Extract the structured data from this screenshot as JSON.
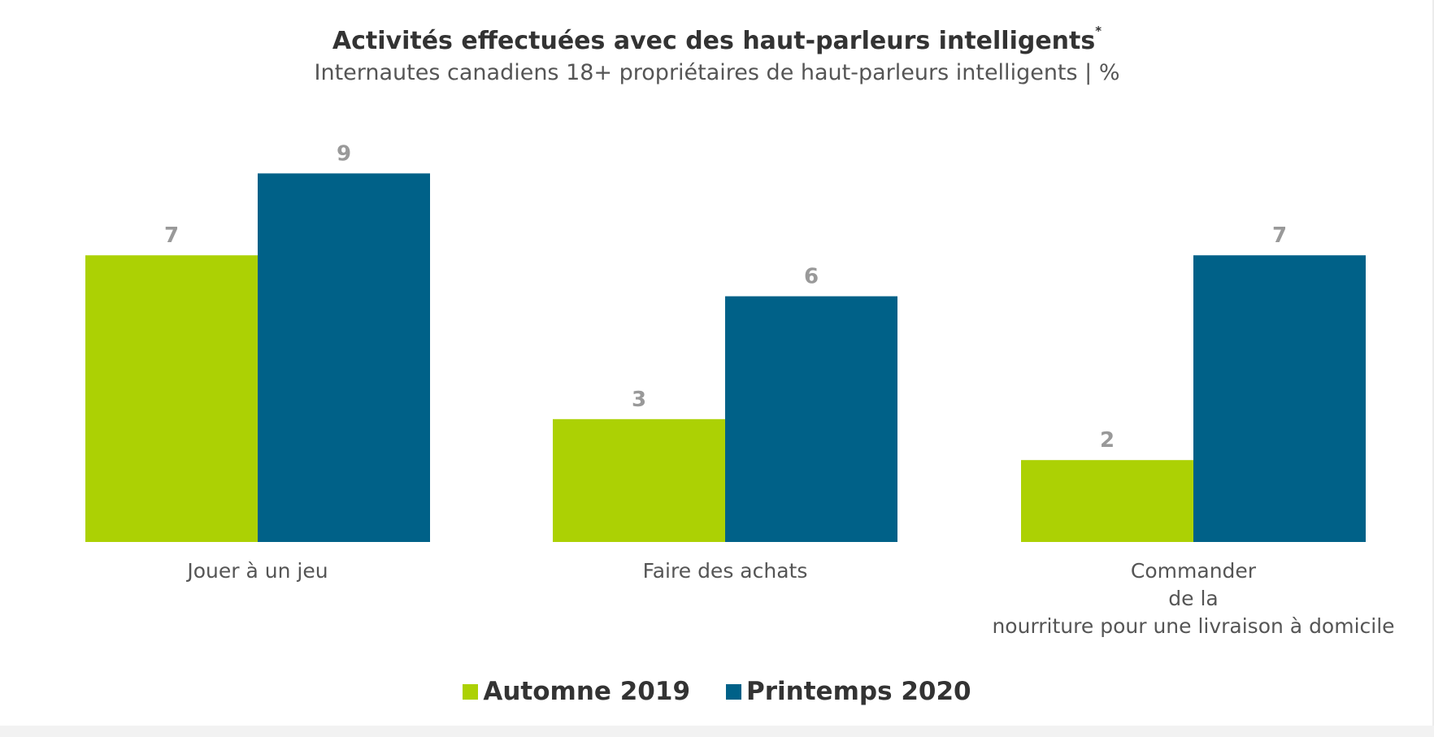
{
  "chart_data": {
    "type": "bar",
    "title": "Activités effectuées avec des haut-parleurs intelligents",
    "title_marker": "*",
    "subtitle": "Internautes canadiens 18+ propriétaires de haut-parleurs intelligents | %",
    "categories": [
      [
        "Jouer à un jeu"
      ],
      [
        "Faire des achats"
      ],
      [
        "Commander",
        "de la",
        "nourriture pour une livraison à domicile"
      ]
    ],
    "series": [
      {
        "name": "Automne 2019",
        "color": "#acd104",
        "values": [
          7,
          3,
          2
        ]
      },
      {
        "name": "Printemps 2020",
        "color": "#006188",
        "values": [
          9,
          6,
          7
        ]
      }
    ],
    "ylim": [
      0,
      14
    ],
    "grid": false,
    "legend_position": "bottom-center",
    "value_label_color": "#999999",
    "category_label_color": "#555555"
  }
}
